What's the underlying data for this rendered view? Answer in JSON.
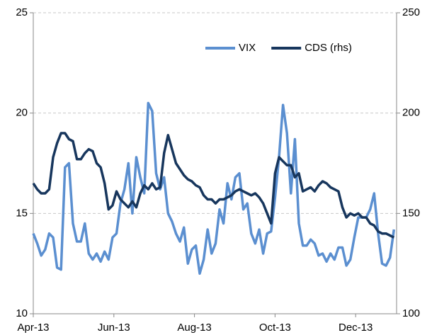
{
  "chart_data": {
    "type": "line",
    "x": [
      0,
      3,
      6,
      9,
      12,
      15,
      18,
      21,
      24,
      27,
      30,
      33,
      36,
      39,
      42,
      45,
      48,
      51,
      54,
      57,
      60,
      63,
      66,
      69,
      72,
      75,
      78,
      81,
      84,
      87,
      90,
      93,
      96,
      99,
      102,
      105,
      108,
      111,
      114,
      117,
      120,
      123,
      126,
      129,
      132,
      135,
      138,
      141,
      144,
      147,
      150,
      153,
      156,
      159,
      162,
      165,
      168,
      171,
      174,
      177,
      180,
      183,
      186,
      189,
      192,
      195,
      198,
      201,
      204,
      207,
      210,
      213,
      216,
      219,
      222,
      225,
      228,
      231,
      234,
      237,
      240,
      243,
      246,
      249,
      252,
      255,
      258,
      261,
      264,
      267,
      270,
      273
    ],
    "series": [
      {
        "name": "VIX",
        "color": "#5b8fd0",
        "axis": "y",
        "values": [
          14,
          13.5,
          12.9,
          13.2,
          14,
          13.8,
          12.3,
          12.2,
          17.3,
          17.5,
          14.5,
          13.6,
          13.6,
          14.5,
          13,
          12.7,
          13,
          12.6,
          13.1,
          12.7,
          13.8,
          14,
          15.5,
          16.2,
          17.5,
          15,
          17.8,
          16.8,
          16,
          20.5,
          20.1,
          17,
          16.2,
          16.8,
          15,
          14.6,
          14,
          13.6,
          14.3,
          12.5,
          13.2,
          13.4,
          12,
          12.7,
          14.2,
          13,
          13.5,
          15.2,
          14.5,
          16.5,
          15.7,
          16.8,
          17,
          15.2,
          15.5,
          14,
          13.5,
          14.2,
          13,
          14,
          14.1,
          15.8,
          17.8,
          20.4,
          19,
          16,
          18.7,
          14.5,
          13.4,
          13.4,
          13.7,
          13.5,
          12.9,
          13,
          12.6,
          13,
          12.7,
          13.3,
          13.3,
          12.4,
          12.7,
          13.8,
          14.8,
          14.8,
          14.8,
          15.2,
          16,
          14,
          12.5,
          12.4,
          12.8,
          14.2
        ]
      },
      {
        "name": "CDS (rhs)",
        "color": "#17365d",
        "axis": "y2",
        "values": [
          165,
          162,
          160,
          160,
          162,
          178,
          185,
          190,
          190,
          187,
          186,
          177,
          177,
          180,
          182,
          181,
          175,
          173,
          165,
          152,
          154,
          161,
          157,
          155,
          153,
          156,
          153,
          160,
          164,
          162,
          165,
          162,
          163,
          180,
          189,
          182,
          175,
          172,
          169,
          167,
          166,
          164,
          163,
          159,
          157,
          157,
          155,
          157,
          157,
          158,
          159,
          161,
          162,
          161,
          160,
          159,
          160,
          158,
          155,
          150,
          145,
          170,
          178,
          176,
          174,
          174,
          168,
          170,
          161,
          162,
          163,
          161,
          164,
          166,
          165,
          163,
          162,
          161,
          153,
          148,
          150,
          149,
          150,
          148,
          148,
          145,
          144,
          141,
          140,
          140,
          139,
          138
        ]
      }
    ],
    "xlim": [
      0,
      275
    ],
    "xticks": [
      {
        "value": 0,
        "label": "Apr-13"
      },
      {
        "value": 61,
        "label": "Jun-13"
      },
      {
        "value": 122,
        "label": "Aug-13"
      },
      {
        "value": 183,
        "label": "Oct-13"
      },
      {
        "value": 244,
        "label": "Dec-13"
      }
    ],
    "ylim": [
      10,
      25
    ],
    "yticks": [
      10,
      15,
      20,
      25
    ],
    "y2lim": [
      100,
      250
    ],
    "y2ticks": [
      100,
      150,
      200,
      250
    ],
    "grid": true,
    "legend": "upper right"
  }
}
